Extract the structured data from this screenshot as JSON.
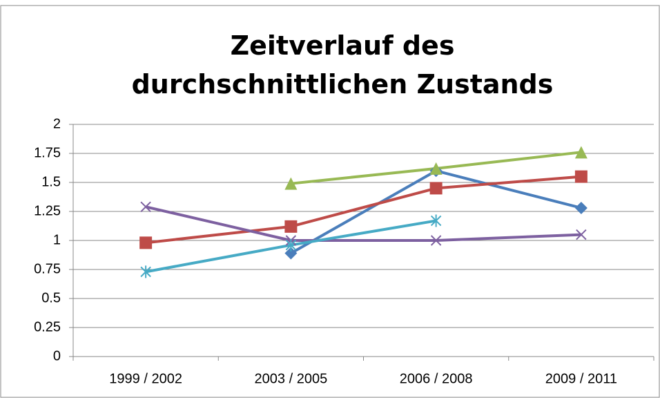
{
  "chart_data": {
    "type": "line",
    "title": "Zeitverlauf des durchschnittlichen Zustands",
    "categories": [
      "1999 / 2002",
      "2003 / 2005",
      "2006 / 2008",
      "2009 / 2011"
    ],
    "series": [
      {
        "color": "#4a7ebb",
        "marker": "diamond",
        "values": [
          null,
          0.89,
          1.6,
          1.28
        ]
      },
      {
        "color": "#be4b48",
        "marker": "square",
        "values": [
          0.98,
          1.12,
          1.45,
          1.55
        ]
      },
      {
        "color": "#98b954",
        "marker": "triangle",
        "values": [
          null,
          1.49,
          1.62,
          1.76
        ]
      },
      {
        "color": "#7d60a0",
        "marker": "x",
        "values": [
          1.29,
          1.0,
          1.0,
          1.05
        ]
      },
      {
        "color": "#46aac5",
        "marker": "star",
        "values": [
          0.73,
          0.96,
          1.17,
          null
        ]
      }
    ],
    "ylim": [
      0,
      2
    ],
    "yticks": [
      0,
      0.25,
      0.5,
      0.75,
      1,
      1.25,
      1.5,
      1.75,
      2
    ],
    "grid": true
  }
}
